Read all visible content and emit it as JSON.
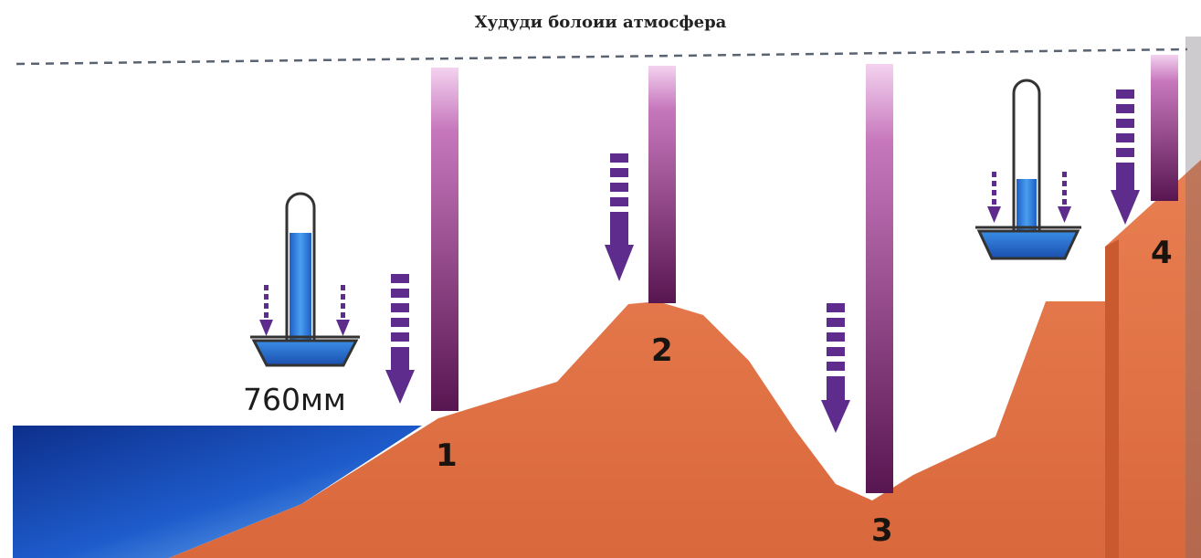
{
  "title": "Худуди болоии атмосфера",
  "pressure_label": "760мм",
  "points": [
    {
      "label": "1"
    },
    {
      "label": "2"
    },
    {
      "label": "3"
    },
    {
      "label": "4"
    }
  ],
  "colors": {
    "land": "#e4774a",
    "sea": "#1c54c4",
    "air_column": "#6a1f63",
    "arrow": "#5d2c8c",
    "mercury": "#2f7bd8"
  },
  "icons": [
    "barometer-icon",
    "pressure-arrow-icon"
  ]
}
